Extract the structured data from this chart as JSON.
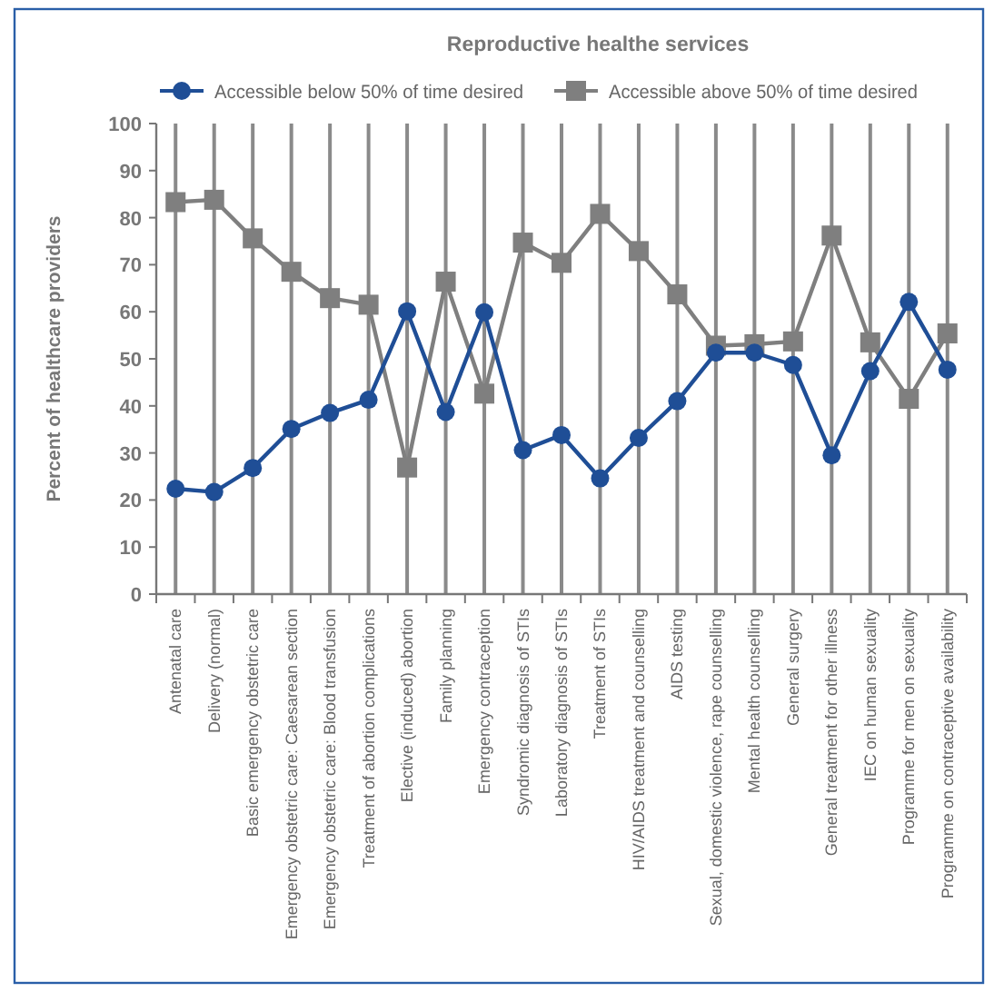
{
  "chart_data": {
    "type": "line",
    "title": "Reproductive healthe services",
    "ylabel": "Percent of healthcare providers",
    "categories": [
      "Antenatal care",
      "Delivery (normal)",
      "Basic emergency obstetric care",
      "Emergency obstetric care: Caesarean section",
      "Emergency obstetric care: Blood transfusion",
      "Treatment of abortion complications",
      "Elective (induced) abortion",
      "Family planning",
      "Emergency contraception",
      "Syndromic diagnosis of STIs",
      "Laboratory diagnosis of STIs",
      "Treatment of STIs",
      "HIV/AIDS treatment and counselling",
      "AIDS testing",
      "Sexual, domestic violence, rape counselling",
      "Mental health counselling",
      "General surgery",
      "General treatment for other illness",
      "IEC on human sexuality",
      "Programme for men on sexuality",
      "Programme on contraceptive availability"
    ],
    "series": [
      {
        "name": "Accessible below 50% of time desired",
        "color": "#1f4e96",
        "marker": "circle",
        "values": [
          22.4,
          21.7,
          26.8,
          35.1,
          38.5,
          41.3,
          60.1,
          38.7,
          59.9,
          30.6,
          33.8,
          24.6,
          33.2,
          41.0,
          51.3,
          51.3,
          48.7,
          29.5,
          47.4,
          62.1,
          47.7
        ]
      },
      {
        "name": "Accessible above 50% of time desired",
        "color": "#7f7f7f",
        "marker": "square",
        "values": [
          83.3,
          83.8,
          75.6,
          68.5,
          62.9,
          61.5,
          26.9,
          66.4,
          42.6,
          74.7,
          70.4,
          80.8,
          72.9,
          63.7,
          52.8,
          53.1,
          53.7,
          76.2,
          53.5,
          41.5,
          55.4
        ]
      }
    ],
    "ylim": [
      0,
      100
    ],
    "yticks": [
      0,
      10,
      20,
      30,
      40,
      50,
      60,
      70,
      80,
      90,
      100
    ],
    "grid": "x",
    "legend": "top"
  }
}
